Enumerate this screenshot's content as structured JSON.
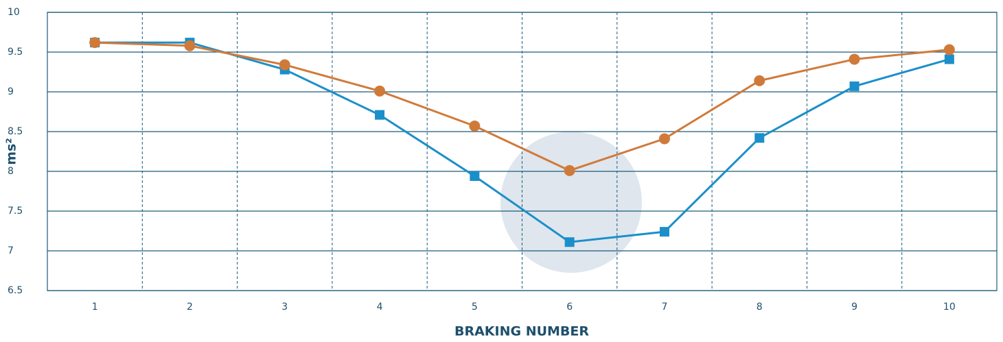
{
  "chart_data": {
    "type": "line",
    "x_label": "BRAKING NUMBER",
    "y_label": "ms²",
    "categories": [
      "1",
      "2",
      "3",
      "4",
      "5",
      "6",
      "7",
      "8",
      "9",
      "10"
    ],
    "series": [
      {
        "color": "#1b8fc9",
        "marker": "square",
        "values": [
          9.62,
          9.62,
          9.28,
          8.71,
          7.94,
          7.11,
          7.24,
          8.42,
          9.07,
          9.41
        ]
      },
      {
        "color": "#d07a3a",
        "marker": "circle",
        "values": [
          9.62,
          9.58,
          9.34,
          9.01,
          8.57,
          8.01,
          8.41,
          9.14,
          9.41,
          9.53
        ]
      }
    ],
    "ylim": [
      6.5,
      10
    ],
    "yticks": [
      6.5,
      7,
      7.5,
      8,
      8.5,
      9,
      9.5,
      10
    ],
    "grid": true
  }
}
